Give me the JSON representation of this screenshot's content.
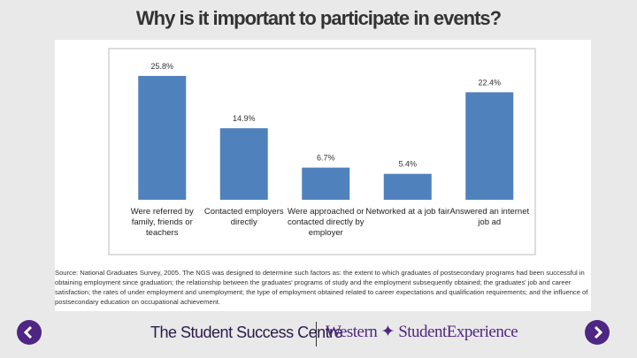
{
  "title": "Why is it important to participate in events?",
  "chart_data": {
    "type": "bar",
    "categories": [
      "Were referred by family, friends or teachers",
      "Contacted employers directly",
      "Were approached or contacted directly by employer",
      "Networked at a job fair",
      "Answered an internet job ad"
    ],
    "values": [
      25.8,
      14.9,
      6.7,
      5.4,
      22.4
    ],
    "value_labels": [
      "25.8%",
      "14.9%",
      "6.7%",
      "5.4%",
      "22.4%"
    ],
    "color": "#4f81bd"
  },
  "source": "Source: National Graduates Survey, 2005. The NGS was designed to determine such factors as: the extent to which graduates of postsecondary programs had been successful in obtaining employment since graduation; the relationship between the graduates' programs of study and the employment subsequently obtained; the graduates' job and career satisfaction; the rates of under employment and unemployment; the type of employment obtained related to career expectations and qualification requirements; and the influence of postsecondary education on occupational achievement.",
  "footer": {
    "left": "The Student Success Centre",
    "right": "Western ✦ StudentExperience"
  }
}
